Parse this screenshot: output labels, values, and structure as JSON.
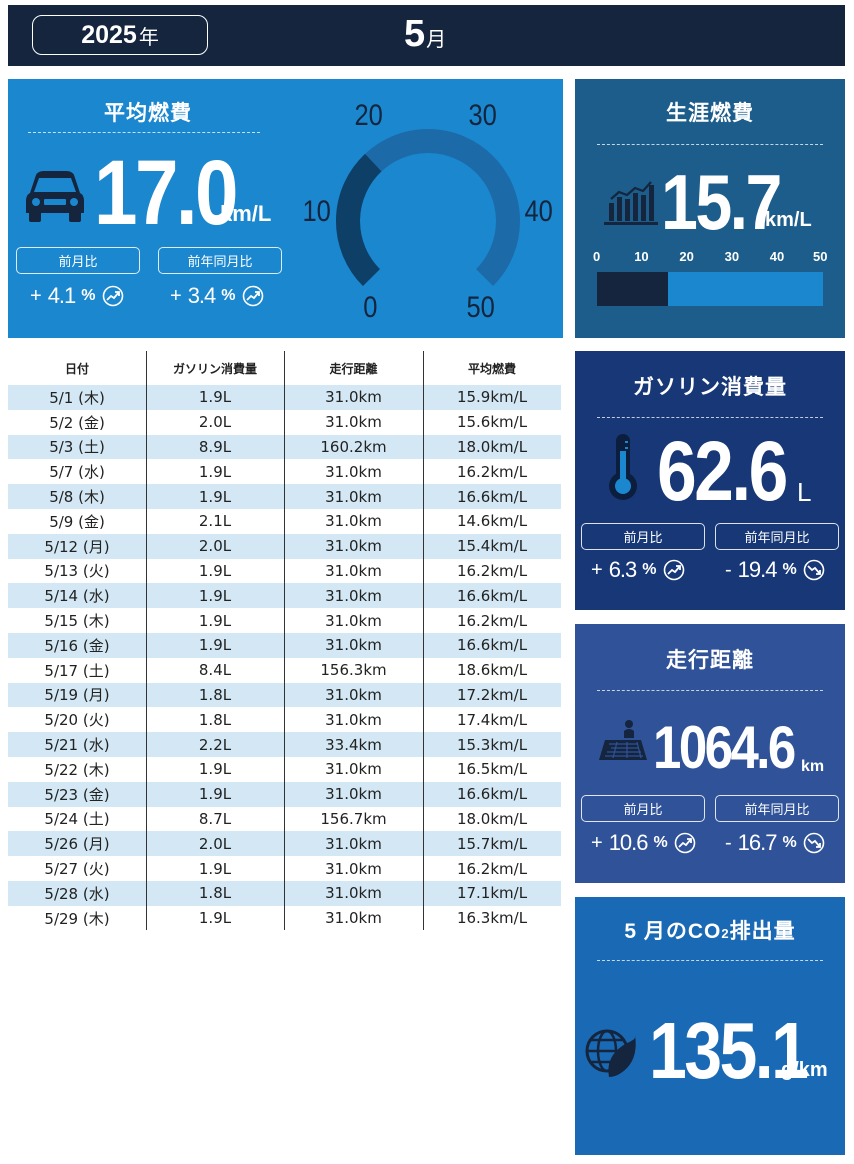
{
  "header": {
    "year": "2025",
    "year_unit": "年",
    "month": "5",
    "month_unit": "月"
  },
  "avg_fuel": {
    "title": "平均燃費",
    "value": "17.0",
    "unit": "km/L",
    "mom_label": "前月比",
    "mom_sign": "+",
    "mom_value": "4.1",
    "mom_pct": "%",
    "yoy_label": "前年同月比",
    "yoy_sign": "+",
    "yoy_value": "3.4",
    "yoy_pct": "%",
    "gauge": {
      "min": 0,
      "max": 50,
      "value": 17.0,
      "ticks": [
        "0",
        "10",
        "20",
        "30",
        "40",
        "50"
      ]
    }
  },
  "lifetime": {
    "title": "生涯燃費",
    "value": "15.7",
    "unit": "km/L",
    "scale": [
      "0",
      "10",
      "20",
      "30",
      "40",
      "50"
    ],
    "bar_value": 15.7,
    "bar_max": 50
  },
  "gasoline": {
    "title": "ガソリン消費量",
    "value": "62.6",
    "unit": "L",
    "mom_label": "前月比",
    "mom_sign": "+",
    "mom_value": "6.3",
    "mom_pct": "%",
    "yoy_label": "前年同月比",
    "yoy_sign": "-",
    "yoy_value": "19.4",
    "yoy_pct": "%"
  },
  "distance": {
    "title": "走行距離",
    "value": "1064.6",
    "unit": "km",
    "mom_label": "前月比",
    "mom_sign": "+",
    "mom_value": "10.6",
    "mom_pct": "%",
    "yoy_label": "前年同月比",
    "yoy_sign": "-",
    "yoy_value": "16.7",
    "yoy_pct": "%"
  },
  "co2": {
    "title_pre": "5 月のCO",
    "title_sub": "2",
    "title_post": "排出量",
    "value": "135.1",
    "unit": "g/km"
  },
  "table": {
    "headers": [
      "日付",
      "ガソリン消費量",
      "走行距離",
      "平均燃費"
    ],
    "rows": [
      [
        "5/1 (木)",
        "1.9L",
        "31.0km",
        "15.9km/L"
      ],
      [
        "5/2 (金)",
        "2.0L",
        "31.0km",
        "15.6km/L"
      ],
      [
        "5/3 (土)",
        "8.9L",
        "160.2km",
        "18.0km/L"
      ],
      [
        "5/7 (水)",
        "1.9L",
        "31.0km",
        "16.2km/L"
      ],
      [
        "5/8 (木)",
        "1.9L",
        "31.0km",
        "16.6km/L"
      ],
      [
        "5/9 (金)",
        "2.1L",
        "31.0km",
        "14.6km/L"
      ],
      [
        "5/12 (月)",
        "2.0L",
        "31.0km",
        "15.4km/L"
      ],
      [
        "5/13 (火)",
        "1.9L",
        "31.0km",
        "16.2km/L"
      ],
      [
        "5/14 (水)",
        "1.9L",
        "31.0km",
        "16.6km/L"
      ],
      [
        "5/15 (木)",
        "1.9L",
        "31.0km",
        "16.2km/L"
      ],
      [
        "5/16 (金)",
        "1.9L",
        "31.0km",
        "16.6km/L"
      ],
      [
        "5/17 (土)",
        "8.4L",
        "156.3km",
        "18.6km/L"
      ],
      [
        "5/19 (月)",
        "1.8L",
        "31.0km",
        "17.2km/L"
      ],
      [
        "5/20 (火)",
        "1.8L",
        "31.0km",
        "17.4km/L"
      ],
      [
        "5/21 (水)",
        "2.2L",
        "33.4km",
        "15.3km/L"
      ],
      [
        "5/22 (木)",
        "1.9L",
        "31.0km",
        "16.5km/L"
      ],
      [
        "5/23 (金)",
        "1.9L",
        "31.0km",
        "16.6km/L"
      ],
      [
        "5/24 (土)",
        "8.7L",
        "156.7km",
        "18.0km/L"
      ],
      [
        "5/26 (月)",
        "2.0L",
        "31.0km",
        "15.7km/L"
      ],
      [
        "5/27 (火)",
        "1.9L",
        "31.0km",
        "16.2km/L"
      ],
      [
        "5/28 (水)",
        "1.8L",
        "31.0km",
        "17.1km/L"
      ],
      [
        "5/29 (木)",
        "1.9L",
        "31.0km",
        "16.3km/L"
      ]
    ]
  },
  "icons": {
    "car": "car-icon",
    "bars": "bar-chart-icon",
    "thermometer": "thermometer-icon",
    "map": "map-icon",
    "globe": "globe-leaf-icon",
    "trend_up": "trend-up-icon",
    "trend_down": "trend-down-icon"
  },
  "colors": {
    "header_bg": "#14253d",
    "avg_bg": "#1a87cf",
    "life_bg": "#1c5d8b",
    "gas_bg": "#173776",
    "dist_bg": "#2f5298",
    "co2_bg": "#1a69b4",
    "table_alt": "#d3e8f4"
  }
}
